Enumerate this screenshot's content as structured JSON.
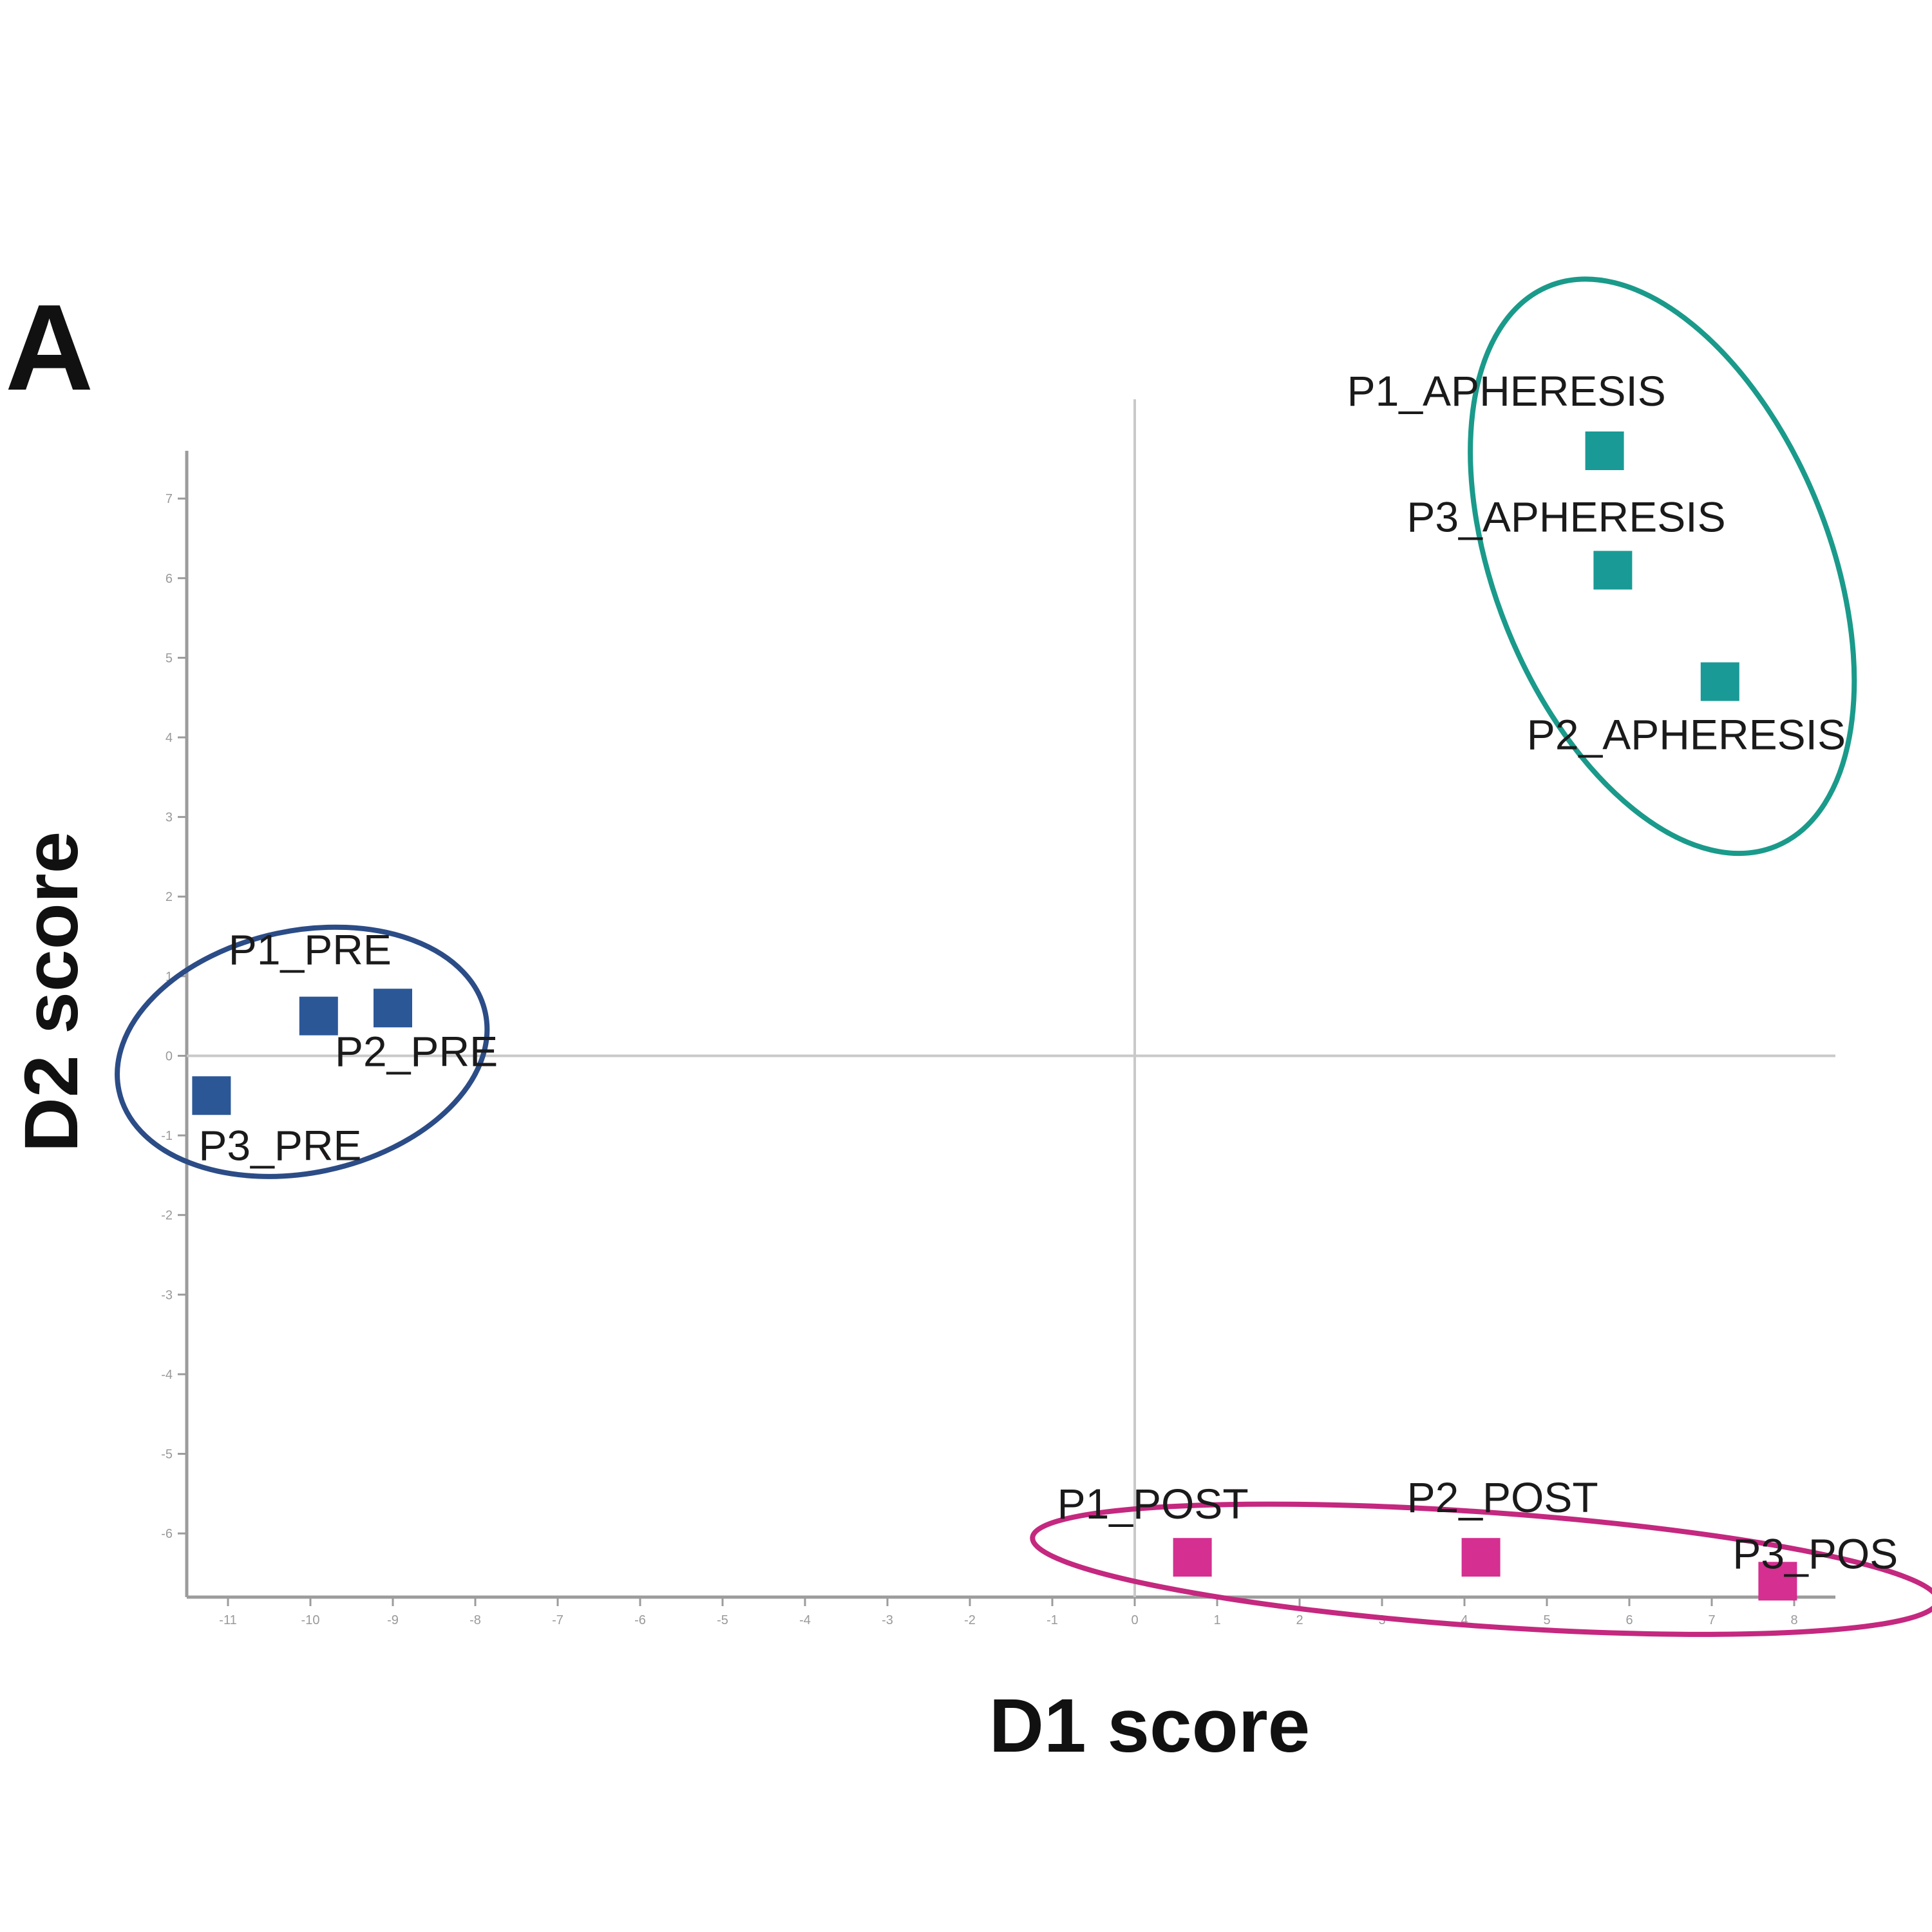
{
  "panel_label": "A",
  "chart_data": {
    "type": "scatter",
    "xlabel": "D1 score",
    "ylabel": "D2 score",
    "xlim": [
      -11.5,
      8.5
    ],
    "ylim": [
      -6.8,
      7.6
    ],
    "x_ticks": [
      -11,
      -10,
      -9,
      -8,
      -7,
      -6,
      -5,
      -4,
      -3,
      -2,
      -1,
      0,
      1,
      2,
      3,
      4,
      5,
      6,
      7,
      8
    ],
    "y_ticks": [
      -6,
      -5,
      -4,
      -3,
      -2,
      -1,
      0,
      1,
      2,
      3,
      4,
      5,
      6,
      7
    ],
    "grid": false,
    "zero_lines": true,
    "marker": "square",
    "series": [
      {
        "color": "#2b5797",
        "points": [
          {
            "label": "P1_PRE",
            "x": -9.9,
            "y": 0.5
          },
          {
            "label": "P2_PRE",
            "x": -9.0,
            "y": 0.6
          },
          {
            "label": "P3_PRE",
            "x": -11.2,
            "y": -0.5
          }
        ]
      },
      {
        "color": "#1a9a96",
        "points": [
          {
            "label": "P1_APHERESIS",
            "x": 5.7,
            "y": 7.6
          },
          {
            "label": "P3_APHERESIS",
            "x": 5.8,
            "y": 6.1
          },
          {
            "label": "P2_APHERESIS",
            "x": 7.1,
            "y": 4.7
          }
        ]
      },
      {
        "color": "#d42f91",
        "points": [
          {
            "label": "P1_POST",
            "x": 0.7,
            "y": -6.3
          },
          {
            "label": "P2_POST",
            "x": 4.2,
            "y": -6.3
          },
          {
            "label": "P3_POS",
            "x": 7.8,
            "y": -6.6
          }
        ]
      }
    ],
    "groups": [
      {
        "color": "#2b4c86"
      },
      {
        "color": "#1a9a8a"
      },
      {
        "color": "#c4287f"
      }
    ]
  }
}
